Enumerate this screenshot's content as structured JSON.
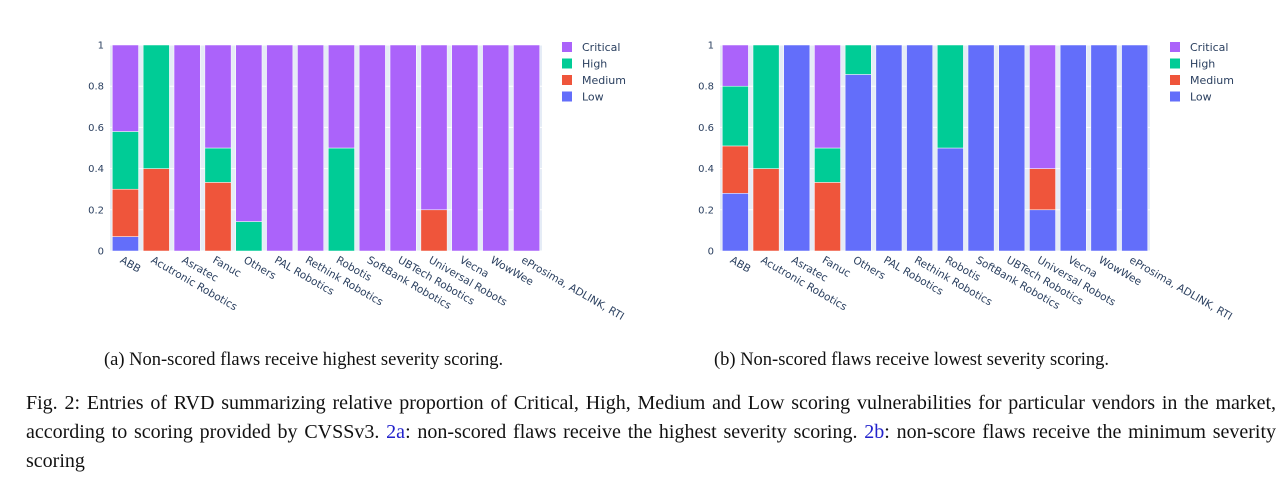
{
  "chart_data": [
    {
      "type": "bar",
      "stacked": true,
      "caption": "(a) Non-scored flaws receive highest severity scoring.",
      "categories": [
        "ABB",
        "Acutronic Robotics",
        "Asratec",
        "Fanuc",
        "Others",
        "PAL Robotics",
        "Rethink Robotics",
        "Robotis",
        "SoftBank Robotics",
        "UBTech Robotics",
        "Universal Robots",
        "Vecna",
        "WowWee",
        "eProsima, ADLINK, RTI"
      ],
      "ylim": [
        0,
        1
      ],
      "yticks": [
        "0",
        "0.2",
        "0.4",
        "0.6",
        "0.8",
        "1"
      ],
      "legend_position": "top-right",
      "series": [
        {
          "name": "Low",
          "color": "#636efa",
          "values": [
            0.07,
            0,
            0,
            0,
            0,
            0,
            0,
            0,
            0,
            0,
            0,
            0,
            0,
            0
          ]
        },
        {
          "name": "Medium",
          "color": "#ef553b",
          "values": [
            0.23,
            0.4,
            0,
            0.333,
            0,
            0,
            0,
            0,
            0,
            0,
            0.2,
            0,
            0,
            0
          ]
        },
        {
          "name": "High",
          "color": "#00cc96",
          "values": [
            0.28,
            0.6,
            0,
            0.167,
            0.143,
            0,
            0,
            0.5,
            0,
            0,
            0,
            0,
            0,
            0
          ]
        },
        {
          "name": "Critical",
          "color": "#ab63fa",
          "values": [
            0.42,
            0,
            1,
            0.5,
            0.857,
            1,
            1,
            0.5,
            1,
            1,
            0.8,
            1,
            1,
            1
          ]
        }
      ]
    },
    {
      "type": "bar",
      "stacked": true,
      "caption": "(b) Non-scored flaws receive lowest severity scoring.",
      "categories": [
        "ABB",
        "Acutronic Robotics",
        "Asratec",
        "Fanuc",
        "Others",
        "PAL Robotics",
        "Rethink Robotics",
        "Robotis",
        "SoftBank Robotics",
        "UBTech Robotics",
        "Universal Robots",
        "Vecna",
        "WowWee",
        "eProsima, ADLINK, RTI"
      ],
      "ylim": [
        0,
        1
      ],
      "yticks": [
        "0",
        "0.2",
        "0.4",
        "0.6",
        "0.8",
        "1"
      ],
      "legend_position": "top-right",
      "series": [
        {
          "name": "Low",
          "color": "#636efa",
          "values": [
            0.28,
            0,
            1,
            0,
            0.857,
            1,
            1,
            0.5,
            1,
            1,
            0.2,
            1,
            1,
            1
          ]
        },
        {
          "name": "Medium",
          "color": "#ef553b",
          "values": [
            0.23,
            0.4,
            0,
            0.333,
            0,
            0,
            0,
            0,
            0,
            0,
            0.2,
            0,
            0,
            0
          ]
        },
        {
          "name": "High",
          "color": "#00cc96",
          "values": [
            0.29,
            0.6,
            0,
            0.167,
            0.143,
            0,
            0,
            0.5,
            0,
            0,
            0,
            0,
            0,
            0
          ]
        },
        {
          "name": "Critical",
          "color": "#ab63fa",
          "values": [
            0.2,
            0,
            0,
            0.5,
            0,
            0,
            0,
            0,
            0,
            0,
            0.6,
            0,
            0,
            0
          ]
        }
      ]
    }
  ],
  "legend_order": [
    "Critical",
    "High",
    "Medium",
    "Low"
  ],
  "figure_caption": {
    "prefix": "Fig. 2: Entries of RVD summarizing relative proportion of Critical, High, Medium and Low scoring vulnerabilities for particular vendors in the market, according to scoring provided by CVSSv3. ",
    "link_a": "2a",
    "text_a": ": non-scored flaws receive the highest severity scoring. ",
    "link_b": "2b",
    "text_b": ": non-score flaws receive the minimum severity scoring"
  }
}
